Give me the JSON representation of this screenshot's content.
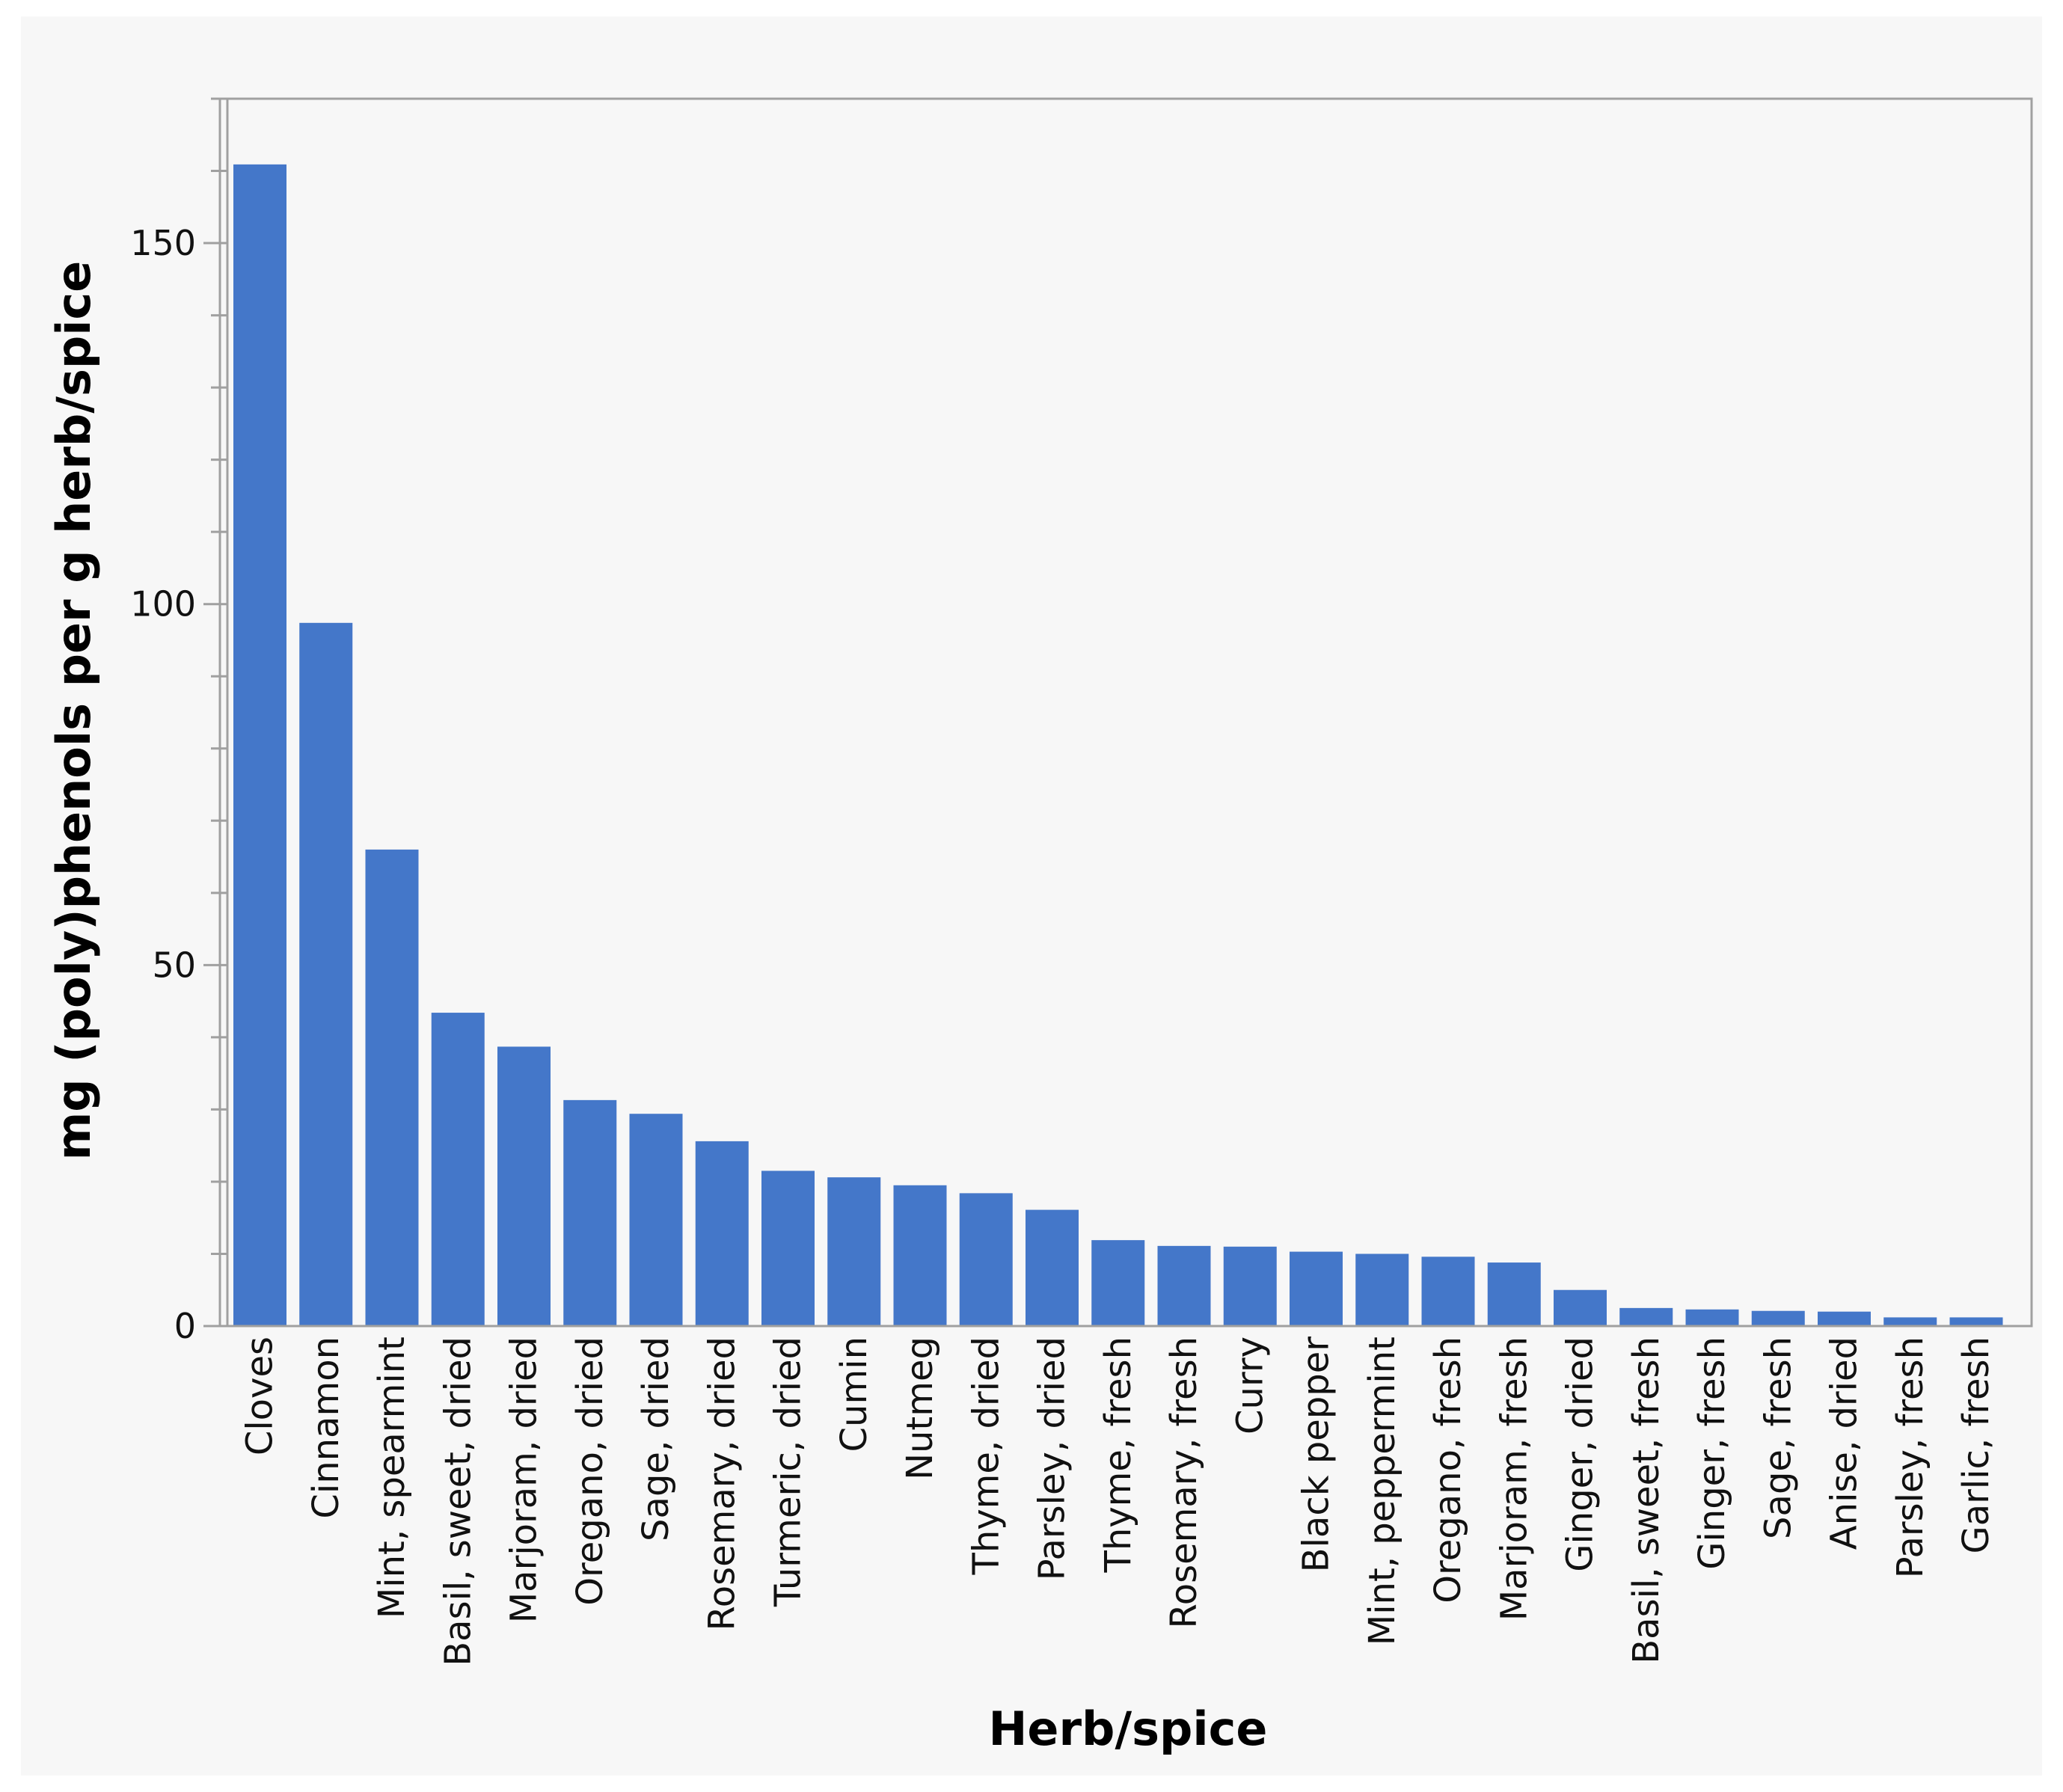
{
  "chart_data": {
    "type": "bar",
    "title": "",
    "xlabel": "Herb/spice",
    "ylabel": "mg (poly)phenols per g herb/spice",
    "ylim": [
      0,
      170
    ],
    "yticks": [
      0,
      50,
      100,
      150
    ],
    "yminor_step": 10,
    "grid": false,
    "bar_color": "#4477c9",
    "categories": [
      "Cloves",
      "Cinnamon",
      "Mint, spearmint",
      "Basil, sweet, dried",
      "Marjoram, dried",
      "Oregano, dried",
      "Sage, dried",
      "Rosemary, dried",
      "Turmeric, dried",
      "Cumin",
      "Nutmeg",
      "Thyme, dried",
      "Parsley, dried",
      "Thyme, fresh",
      "Rosemary, fresh",
      "Curry",
      "Black pepper",
      "Mint, peppermint",
      "Oregano, fresh",
      "Marjoram, fresh",
      "Ginger, dried",
      "Basil, sweet, fresh",
      "Ginger, fresh",
      "Sage, fresh",
      "Anise, dried",
      "Parsley, fresh",
      "Garlic, fresh"
    ],
    "values": [
      160.9,
      97.4,
      66.0,
      43.4,
      38.7,
      31.3,
      29.4,
      25.6,
      21.5,
      20.6,
      19.5,
      18.4,
      16.1,
      11.9,
      11.1,
      11.0,
      10.3,
      10.0,
      9.6,
      8.8,
      5.0,
      2.5,
      2.3,
      2.1,
      2.0,
      1.2,
      1.2
    ]
  }
}
